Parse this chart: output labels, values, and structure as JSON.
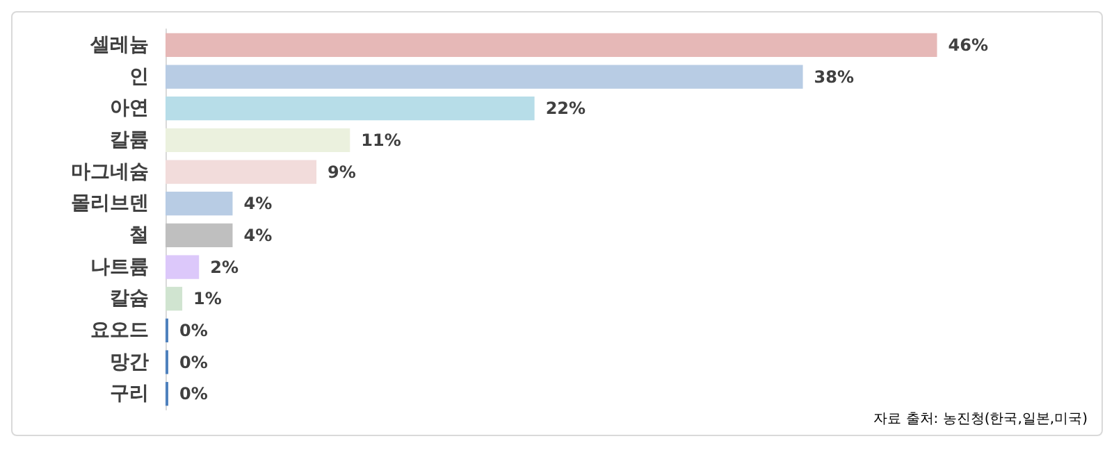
{
  "chart_data": {
    "type": "bar",
    "orientation": "horizontal",
    "categories": [
      "셀레늄",
      "인",
      "아연",
      "칼륨",
      "마그네슘",
      "몰리브덴",
      "철",
      "나트륨",
      "칼슘",
      "요오드",
      "망간",
      "구리"
    ],
    "values": [
      46,
      38,
      22,
      11,
      9,
      4,
      4,
      2,
      1,
      0,
      0,
      0
    ],
    "colors": [
      "#e6b8b7",
      "#b8cce4",
      "#b7dde8",
      "#ebf1de",
      "#f2dcdb",
      "#b8cce4",
      "#bfbfbf",
      "#dcc8fa",
      "#d0e4d0",
      "#4f81bd",
      "#4f81bd",
      "#4f81bd"
    ],
    "value_labels": [
      "46%",
      "38%",
      "22%",
      "11%",
      "9%",
      "4%",
      "4%",
      "2%",
      "1%",
      "0%",
      "0%",
      "0%"
    ],
    "annotations": [
      "자료 출처: 농진청(한국,일본,미국)"
    ]
  }
}
